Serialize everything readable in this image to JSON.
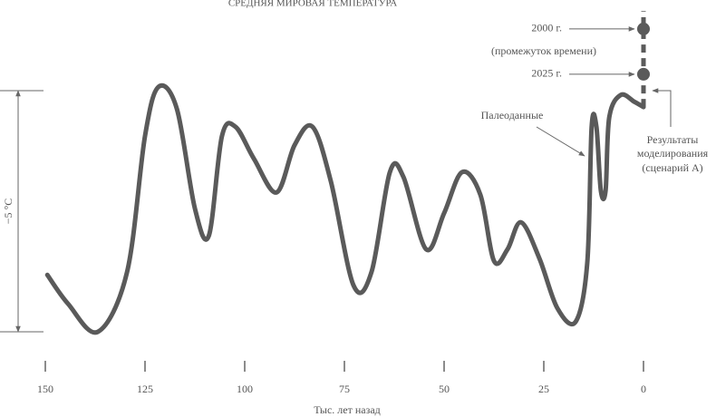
{
  "chart_data": {
    "type": "line",
    "title": "СРЕДНЯЯ МИРОВАЯ ТЕМПЕРАТУРА",
    "x_label": "Тыс. лет назад",
    "xlim": [
      150,
      0
    ],
    "xticks": [
      150,
      125,
      100,
      75,
      50,
      25,
      0
    ],
    "ylim": [
      0,
      6.88
    ],
    "series": [
      {
        "name": "Палеоданные",
        "color": "#5a5a5a",
        "x": [
          149.5,
          144.3,
          136.8,
          129.5,
          125,
          121.6,
          117,
          112.5,
          109,
          105.7,
          102.3,
          97.7,
          92,
          87.5,
          83,
          78.4,
          72.7,
          68.2,
          63.6,
          60.2,
          54.5,
          50,
          45.5,
          40.9,
          37.5,
          34.1,
          30.7,
          26.1,
          21.6,
          17,
          14.1,
          13,
          11.8,
          10.7,
          9.5,
          8.6,
          5.7,
          2.3,
          0
        ],
        "values": [
          1.18,
          0.58,
          0,
          1.24,
          4.06,
          5.08,
          4.62,
          2.56,
          1.99,
          4.06,
          4.25,
          3.59,
          2.89,
          3.87,
          4.25,
          3.12,
          0.96,
          1.24,
          3.31,
          3.21,
          1.71,
          2.46,
          3.31,
          2.84,
          1.47,
          1.71,
          2.27,
          1.52,
          0.49,
          0.21,
          1.43,
          4.25,
          4.25,
          2.93,
          2.93,
          4.44,
          4.91,
          4.77,
          4.66
        ]
      },
      {
        "name": [
          "Результаты",
          "моделирования",
          "(сценарий А)"
        ],
        "color": "#5a5a5a",
        "dashed": true,
        "x": [
          0,
          0
        ],
        "values": [
          4.66,
          6.65
        ]
      }
    ],
    "points": [
      {
        "label": "2000 г.",
        "x": 0,
        "y": 6.28
      },
      {
        "label": "2025 г.",
        "x": 0,
        "y": 5.34
      }
    ],
    "points_note": "(промежуток времени)",
    "scale_bar": {
      "label": "−5 °C",
      "from": 0,
      "to": 5
    }
  }
}
